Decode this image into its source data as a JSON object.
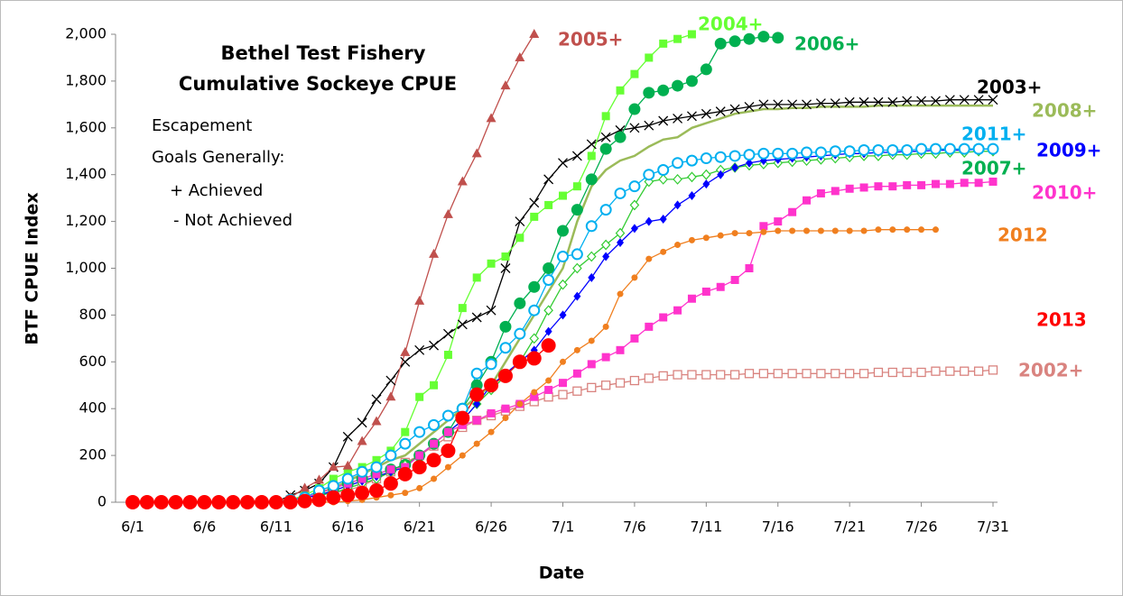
{
  "chart_data": {
    "type": "line",
    "title": [
      "Bethel Test Fishery",
      "Cumulative Sockeye CPUE"
    ],
    "annotations": [
      "Escapement",
      "Goals Generally:",
      "+ Achieved",
      "- Not Achieved"
    ],
    "x_label": "Date",
    "y_label": "BTF CPUE Index",
    "categories": [
      "6/1",
      null,
      null,
      null,
      null,
      "6/6",
      null,
      null,
      null,
      null,
      "6/11",
      null,
      null,
      null,
      null,
      "6/16",
      null,
      null,
      null,
      null,
      "6/21",
      null,
      null,
      null,
      null,
      "6/26",
      null,
      null,
      null,
      null,
      "7/1",
      null,
      null,
      null,
      null,
      "7/6",
      null,
      null,
      null,
      null,
      "7/11",
      null,
      null,
      null,
      null,
      "7/16",
      null,
      null,
      null,
      null,
      "7/21",
      null,
      null,
      null,
      null,
      "7/26",
      null,
      null,
      null,
      null,
      "7/31"
    ],
    "ylim": [
      0,
      2000
    ],
    "yticks": [
      0,
      200,
      400,
      600,
      800,
      {
        "value": 1000,
        "label": "1,000"
      },
      {
        "value": 1200,
        "label": "1,200"
      },
      {
        "value": 1400,
        "label": "1,400"
      },
      {
        "value": 1600,
        "label": "1,600"
      },
      {
        "value": 1800,
        "label": "1,800"
      },
      {
        "value": 2000,
        "label": "2,000"
      }
    ],
    "grid": false,
    "series": [
      {
        "name": "2002+",
        "color": "#d9837f",
        "marker": "square-open",
        "values": [
          0,
          0,
          0,
          0,
          0,
          0,
          0,
          0,
          0,
          0,
          0,
          10,
          20,
          30,
          40,
          50,
          70,
          100,
          130,
          170,
          200,
          240,
          280,
          320,
          350,
          370,
          390,
          410,
          430,
          450,
          460,
          475,
          490,
          500,
          510,
          520,
          530,
          540,
          545,
          545,
          545,
          545,
          545,
          550,
          550,
          550,
          550,
          550,
          550,
          550,
          550,
          550,
          555,
          555,
          555,
          555,
          560,
          560,
          560,
          560,
          565
        ]
      },
      {
        "name": "2003+",
        "color": "#000000",
        "marker": "x",
        "values": [
          0,
          0,
          0,
          0,
          0,
          0,
          0,
          0,
          0,
          0,
          0,
          30,
          50,
          80,
          150,
          280,
          340,
          440,
          520,
          600,
          650,
          670,
          720,
          760,
          790,
          820,
          1000,
          1200,
          1280,
          1380,
          1450,
          1480,
          1530,
          1560,
          1590,
          1600,
          1610,
          1630,
          1640,
          1650,
          1660,
          1670,
          1680,
          1690,
          1700,
          1700,
          1700,
          1700,
          1705,
          1705,
          1710,
          1710,
          1710,
          1710,
          1715,
          1715,
          1715,
          1720,
          1720,
          1720,
          1720
        ]
      },
      {
        "name": "2004+",
        "color": "#66ff33",
        "marker": "square",
        "values": [
          0,
          0,
          0,
          0,
          0,
          0,
          0,
          0,
          0,
          0,
          0,
          10,
          30,
          60,
          100,
          130,
          150,
          180,
          220,
          300,
          450,
          500,
          630,
          830,
          960,
          1020,
          1050,
          1130,
          1220,
          1270,
          1310,
          1350,
          1480,
          1650,
          1760,
          1830,
          1900,
          1960,
          1980,
          2000,
          null,
          null,
          null,
          null,
          null,
          null,
          null,
          null,
          null,
          null,
          null,
          null,
          null,
          null,
          null,
          null,
          null,
          null,
          null,
          null,
          null
        ]
      },
      {
        "name": "2005+",
        "color": "#c0504d",
        "marker": "triangle",
        "values": [
          0,
          0,
          0,
          0,
          0,
          0,
          0,
          0,
          0,
          0,
          5,
          20,
          60,
          95,
          150,
          155,
          260,
          345,
          450,
          640,
          860,
          1060,
          1230,
          1370,
          1490,
          1640,
          1780,
          1900,
          2000,
          null,
          null,
          null,
          null,
          null,
          null,
          null,
          null,
          null,
          null,
          null,
          null,
          null,
          null,
          null,
          null,
          null,
          null,
          null,
          null,
          null,
          null,
          null,
          null,
          null,
          null,
          null,
          null,
          null,
          null,
          null,
          null
        ]
      },
      {
        "name": "2006+",
        "color": "#00b050",
        "marker": "circle",
        "values": [
          0,
          0,
          0,
          0,
          0,
          0,
          0,
          0,
          0,
          0,
          0,
          10,
          20,
          40,
          60,
          80,
          100,
          120,
          140,
          160,
          200,
          250,
          300,
          400,
          500,
          600,
          750,
          850,
          920,
          1000,
          1160,
          1250,
          1380,
          1510,
          1560,
          1680,
          1750,
          1760,
          1780,
          1800,
          1850,
          1960,
          1970,
          1980,
          1990,
          1985,
          null,
          null,
          null,
          null,
          null,
          null,
          null,
          null,
          null,
          null,
          null,
          null,
          null,
          null,
          null
        ]
      },
      {
        "name": "2007+",
        "color": "#00b050",
        "marker": "diamond-open",
        "values": [
          0,
          0,
          0,
          0,
          0,
          0,
          0,
          0,
          0,
          0,
          0,
          10,
          20,
          30,
          40,
          60,
          80,
          100,
          130,
          160,
          200,
          250,
          300,
          350,
          420,
          480,
          540,
          600,
          700,
          820,
          930,
          1000,
          1050,
          1100,
          1150,
          1270,
          1370,
          1380,
          1380,
          1390,
          1400,
          1420,
          1430,
          1440,
          1445,
          1450,
          1455,
          1460,
          1465,
          1470,
          1475,
          1480,
          1480,
          1485,
          1485,
          1490,
          1490,
          1495,
          1495,
          1500,
          1500
        ]
      },
      {
        "name": "2008+",
        "color": "#9bbb59",
        "marker": "none",
        "values": [
          0,
          0,
          0,
          0,
          0,
          0,
          0,
          0,
          0,
          0,
          0,
          10,
          20,
          40,
          60,
          90,
          120,
          150,
          180,
          200,
          250,
          300,
          350,
          400,
          450,
          500,
          600,
          700,
          800,
          900,
          1000,
          1200,
          1350,
          1420,
          1460,
          1480,
          1520,
          1550,
          1560,
          1600,
          1620,
          1640,
          1660,
          1670,
          1680,
          1680,
          1685,
          1685,
          1690,
          1690,
          1690,
          1690,
          1695,
          1695,
          1695,
          1695,
          1695,
          1695,
          1695,
          1695,
          1695
        ]
      },
      {
        "name": "2009+",
        "color": "#0000ff",
        "marker": "diamond",
        "values": [
          0,
          0,
          0,
          0,
          0,
          0,
          0,
          0,
          0,
          0,
          0,
          10,
          20,
          30,
          50,
          70,
          90,
          110,
          130,
          150,
          200,
          250,
          300,
          350,
          420,
          500,
          550,
          600,
          650,
          730,
          800,
          880,
          960,
          1050,
          1110,
          1170,
          1200,
          1210,
          1270,
          1310,
          1360,
          1400,
          1430,
          1450,
          1460,
          1465,
          1470,
          1475,
          1480,
          1485,
          1490,
          1490,
          1495,
          1495,
          1500,
          1500,
          1505,
          1505,
          1505,
          1510,
          1510
        ]
      },
      {
        "name": "2010+",
        "color": "#ff33cc",
        "marker": "square",
        "values": [
          0,
          0,
          0,
          0,
          0,
          0,
          0,
          0,
          0,
          0,
          0,
          10,
          20,
          40,
          60,
          80,
          100,
          120,
          140,
          150,
          200,
          250,
          300,
          330,
          350,
          380,
          400,
          420,
          450,
          480,
          510,
          550,
          590,
          620,
          650,
          700,
          750,
          790,
          820,
          870,
          900,
          920,
          950,
          1000,
          1180,
          1200,
          1240,
          1290,
          1320,
          1330,
          1340,
          1345,
          1350,
          1350,
          1355,
          1355,
          1360,
          1360,
          1365,
          1365,
          1370
        ]
      },
      {
        "name": "2011+",
        "color": "#00b0f0",
        "marker": "ring",
        "values": [
          0,
          0,
          0,
          0,
          0,
          0,
          0,
          0,
          0,
          0,
          0,
          10,
          20,
          50,
          70,
          100,
          130,
          150,
          200,
          250,
          300,
          330,
          370,
          400,
          550,
          590,
          660,
          720,
          820,
          950,
          1050,
          1060,
          1180,
          1250,
          1320,
          1350,
          1400,
          1420,
          1450,
          1460,
          1470,
          1475,
          1480,
          1485,
          1490,
          1490,
          1490,
          1495,
          1495,
          1500,
          1500,
          1505,
          1505,
          1505,
          1505,
          1510,
          1510,
          1510,
          1510,
          1510,
          1510
        ]
      },
      {
        "name": "2012",
        "color": "#f07f1f",
        "marker": "dot",
        "values": [
          0,
          0,
          0,
          0,
          0,
          0,
          0,
          0,
          0,
          0,
          0,
          0,
          0,
          0,
          0,
          5,
          10,
          20,
          30,
          40,
          60,
          100,
          150,
          200,
          250,
          300,
          360,
          420,
          470,
          520,
          600,
          650,
          690,
          750,
          890,
          960,
          1040,
          1070,
          1100,
          1120,
          1130,
          1140,
          1150,
          1150,
          1155,
          1160,
          1160,
          1160,
          1160,
          1160,
          1160,
          1160,
          1165,
          1165,
          1165,
          1165,
          1165,
          null,
          null,
          null,
          null
        ]
      },
      {
        "name": "2013",
        "color": "#ff0000",
        "marker": "circle",
        "values": [
          0,
          0,
          0,
          0,
          0,
          0,
          0,
          0,
          0,
          0,
          0,
          0,
          5,
          10,
          20,
          30,
          40,
          50,
          80,
          120,
          150,
          180,
          220,
          360,
          460,
          500,
          540,
          600,
          615,
          670,
          null,
          null,
          null,
          null,
          null,
          null,
          null,
          null,
          null,
          null,
          null,
          null,
          null,
          null,
          null,
          null,
          null,
          null,
          null,
          null,
          null,
          null,
          null,
          null,
          null,
          null,
          null,
          null,
          null,
          null,
          null
        ]
      }
    ]
  }
}
